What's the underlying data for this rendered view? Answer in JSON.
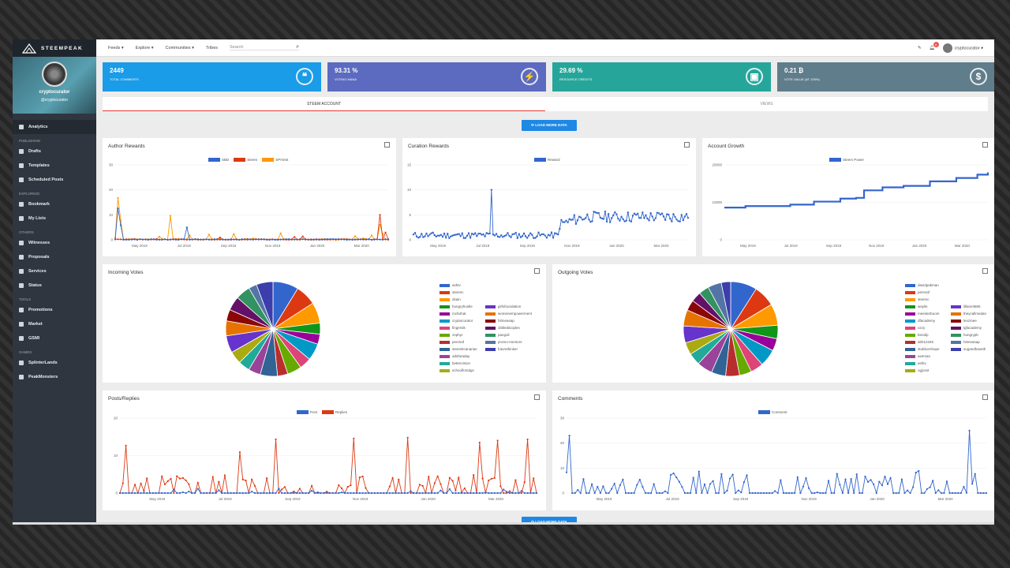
{
  "app": {
    "brand": "STEEMPEAK",
    "username": "cryptocurator",
    "handle": "@cryptocurator"
  },
  "sidebar": [
    {
      "type": "item",
      "label": "Analytics",
      "icon": "pie-chart-icon",
      "active": true
    },
    {
      "type": "section",
      "label": "PUBLISHING"
    },
    {
      "type": "item",
      "label": "Drafts",
      "icon": "drafts-icon"
    },
    {
      "type": "item",
      "label": "Templates",
      "icon": "templates-icon"
    },
    {
      "type": "item",
      "label": "Scheduled Posts",
      "icon": "clock-icon"
    },
    {
      "type": "section",
      "label": "EXPLORING"
    },
    {
      "type": "item",
      "label": "Bookmark",
      "icon": "bookmark-icon"
    },
    {
      "type": "item",
      "label": "My Lists",
      "icon": "list-icon"
    },
    {
      "type": "section",
      "label": "OTHERS"
    },
    {
      "type": "item",
      "label": "Witnesses",
      "icon": "witness-icon"
    },
    {
      "type": "item",
      "label": "Proposals",
      "icon": "proposal-icon"
    },
    {
      "type": "item",
      "label": "Services",
      "icon": "services-icon"
    },
    {
      "type": "item",
      "label": "Status",
      "icon": "status-icon"
    },
    {
      "type": "section",
      "label": "TOOLS"
    },
    {
      "type": "item",
      "label": "Promotions",
      "icon": "promotion-icon"
    },
    {
      "type": "item",
      "label": "Market",
      "icon": "market-icon"
    },
    {
      "type": "item",
      "label": "GSMI",
      "icon": "gsmi-icon"
    },
    {
      "type": "section",
      "label": "GAMES"
    },
    {
      "type": "item",
      "label": "SplinterLands",
      "icon": "splinterlands-icon"
    },
    {
      "type": "item",
      "label": "PeakMonsters",
      "icon": "peakmonsters-icon"
    }
  ],
  "topbar": {
    "feeds": "Feeds",
    "explore": "Explore",
    "communities": "Communities",
    "tribes": "Tribes",
    "search_placeholder": "Search",
    "notifications": "8",
    "user": "cryptocurator"
  },
  "stats": [
    {
      "value": "2449",
      "label": "TOTAL COMMENTS",
      "color": "#1a9ce8",
      "icon": "comments-icon",
      "glyph": "❝"
    },
    {
      "value": "93.31 %",
      "label": "VOTING MANA",
      "color": "#5c6bc0",
      "icon": "lightning-icon",
      "glyph": "⚡"
    },
    {
      "value": "29.69 %",
      "label": "RESOURCE CREDITS",
      "color": "#26a69a",
      "icon": "chip-icon",
      "glyph": "▣"
    },
    {
      "value": "0.21 ₿",
      "label": "VOTE VALUE (AT 100%)",
      "color": "#607d8b",
      "icon": "dollar-icon",
      "glyph": "$"
    }
  ],
  "tabs": [
    "STEEM ACCOUNT",
    "VIEWS"
  ],
  "load_more": "LOAD MORE DATA",
  "months": [
    "May 2019",
    "Jul 2019",
    "Sep 2019",
    "Nov 2019",
    "Jan 2020",
    "Mar 2020"
  ],
  "colors": {
    "blue": "#3366cc",
    "red": "#dc3912",
    "orange": "#ff9900"
  },
  "charts": {
    "author": {
      "title": "Author Rewards",
      "legend": [
        "SBD",
        "Steem",
        "SP/Vest"
      ],
      "yticks": [
        "30",
        "20",
        "10",
        "0"
      ]
    },
    "curation": {
      "title": "Curation Rewards",
      "legend": [
        "Reward"
      ],
      "yticks": [
        "15",
        "10",
        "5",
        "0"
      ]
    },
    "growth": {
      "title": "Account Growth",
      "legend": [
        "Steem Power"
      ],
      "yticks": [
        "20000",
        "10000",
        "0"
      ]
    },
    "posts": {
      "title": "Posts/Replies",
      "legend": [
        "Post",
        "Replies"
      ],
      "yticks": [
        "20",
        "10",
        "0"
      ]
    },
    "comments": {
      "title": "Comments",
      "legend": [
        "Comment"
      ],
      "yticks": [
        "30",
        "20",
        "10",
        "0"
      ]
    }
  },
  "incoming": {
    "title": "Incoming Votes",
    "col1": [
      "ashtv",
      "steemc",
      "dsain",
      "hungryhustle",
      "mcfarhat",
      "cryptocurator",
      "fingersik",
      "zephyr",
      "penmaf",
      "steemitcanarias",
      "adsfaraday",
      "bettervision",
      "schoolforsdgs"
    ],
    "col2": [
      "girlsfoundation",
      "womenempowerment",
      "hitmeasap",
      "1littledisciples",
      "pangoli",
      "promo-mentors",
      "futurethinker"
    ],
    "palette": [
      "#3366cc",
      "#dc3912",
      "#ff9900",
      "#109618",
      "#990099",
      "#0099c6",
      "#dd4477",
      "#66aa00",
      "#b82e2e",
      "#316395",
      "#994499",
      "#22aa99",
      "#aaaa11",
      "#6633cc",
      "#e67300",
      "#8b0707",
      "#651067",
      "#329262",
      "#5574a6",
      "#3b3eac"
    ]
  },
  "outgoing": {
    "title": "Outgoing Votes",
    "col1": [
      "davidpakman",
      "penmaf",
      "steemc",
      "waylie",
      "meesterboom",
      "dfacademy",
      "ozzy",
      "bendip",
      "abh12345",
      "stubbornhope",
      "axeman",
      "ashtv",
      "ogjosst"
    ],
    "col2": [
      "lillane3865",
      "theycallmedan",
      "lexzmee",
      "lgfacademy",
      "hungrypb",
      "hitmeasap",
      "sugandhaseth"
    ]
  }
}
